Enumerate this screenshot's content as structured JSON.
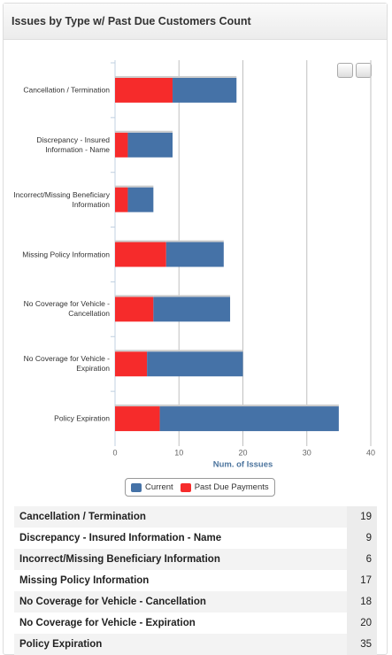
{
  "header": {
    "title": "Issues by Type w/ Past Due Customers Count"
  },
  "chart_data": {
    "type": "bar",
    "orientation": "horizontal",
    "stacked": true,
    "categories": [
      "Cancellation / Termination",
      "Discrepancy - Insured Information - Name",
      "Incorrect/Missing Beneficiary Information",
      "Missing Policy Information",
      "No Coverage for Vehicle - Cancellation",
      "No Coverage for Vehicle - Expiration",
      "Policy Expiration"
    ],
    "series": [
      {
        "name": "Current",
        "color": "#4572a7",
        "values": [
          10,
          7,
          4,
          9,
          12,
          15,
          28
        ]
      },
      {
        "name": "Past Due Payments",
        "color": "#f62b2b",
        "values": [
          9,
          2,
          2,
          8,
          6,
          5,
          7
        ]
      }
    ],
    "xlabel": "Num. of Issues",
    "xlim": [
      0,
      40
    ],
    "xticks": [
      0,
      10,
      20,
      30,
      40
    ],
    "grid": true,
    "legend": "bottom"
  },
  "table": {
    "rows": [
      [
        "Cancellation / Termination",
        19
      ],
      [
        "Discrepancy - Insured Information - Name",
        9
      ],
      [
        "Incorrect/Missing Beneficiary Information",
        6
      ],
      [
        "Missing Policy Information",
        17
      ],
      [
        "No Coverage for Vehicle - Cancellation",
        18
      ],
      [
        "No Coverage for Vehicle - Expiration",
        20
      ],
      [
        "Policy Expiration",
        35
      ]
    ]
  }
}
